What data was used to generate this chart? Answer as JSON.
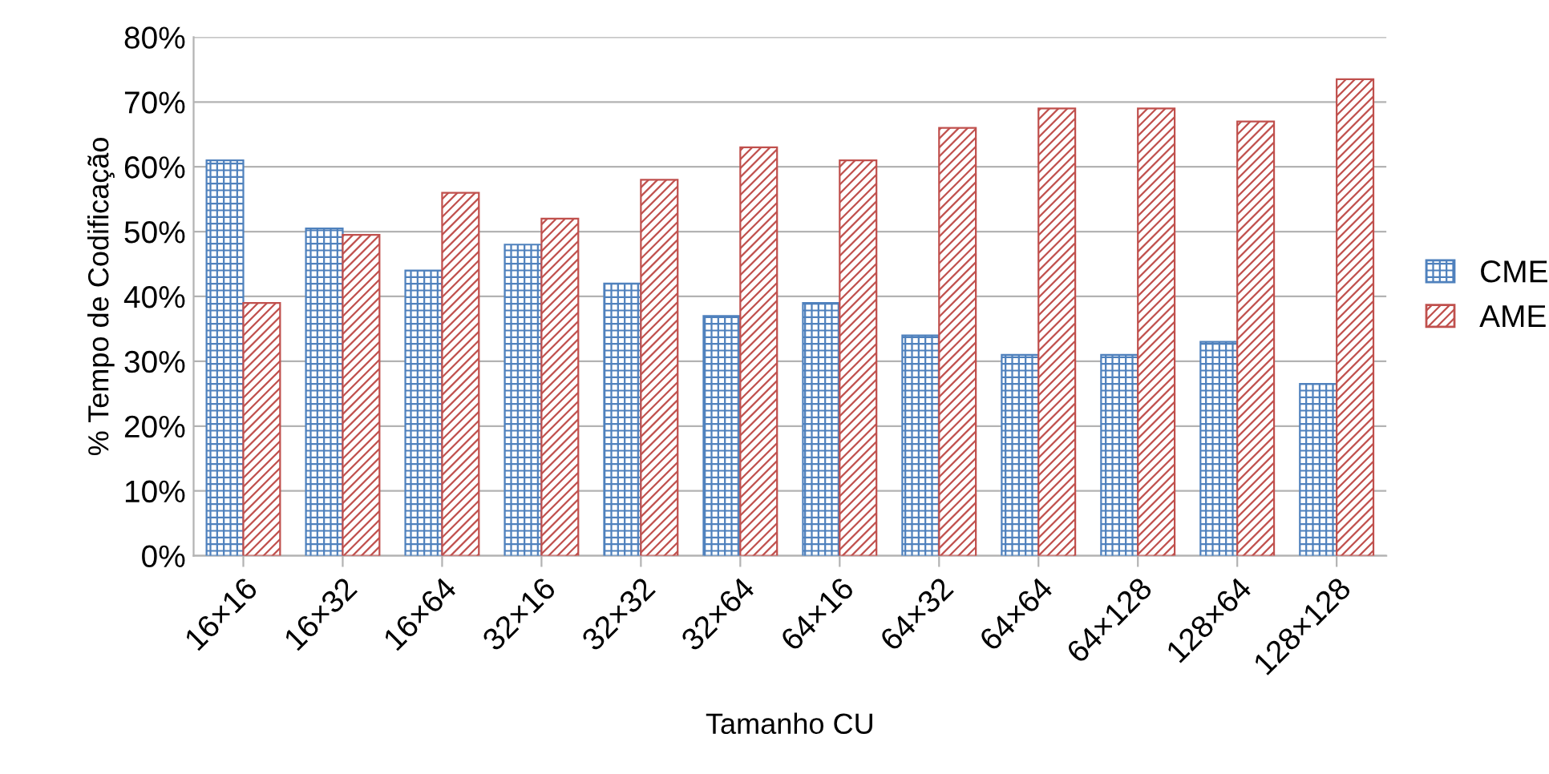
{
  "chart_data": {
    "type": "bar",
    "xlabel": "Tamanho CU",
    "ylabel": "% Tempo de Codificação",
    "categories": [
      "16×16",
      "16×32",
      "16×64",
      "32×16",
      "32×32",
      "32×64",
      "64×16",
      "64×32",
      "64×64",
      "64×128",
      "128×64",
      "128×128"
    ],
    "series": [
      {
        "name": "CME",
        "color": "#4f81bd",
        "values": [
          61,
          50.5,
          44,
          48,
          42,
          37,
          39,
          34,
          31,
          31,
          33,
          26.5
        ]
      },
      {
        "name": "AME",
        "color": "#c0504d",
        "values": [
          39,
          49.5,
          56,
          52,
          58,
          63,
          61,
          66,
          69,
          69,
          67,
          73.5
        ]
      }
    ],
    "ylim": [
      0,
      80
    ],
    "yticks": [
      {
        "value": 0,
        "label": "0%"
      },
      {
        "value": 10,
        "label": "10%"
      },
      {
        "value": 20,
        "label": "20%"
      },
      {
        "value": 30,
        "label": "30%"
      },
      {
        "value": 40,
        "label": "40%"
      },
      {
        "value": 50,
        "label": "50%"
      },
      {
        "value": 60,
        "label": "60%"
      },
      {
        "value": 70,
        "label": "70%"
      },
      {
        "value": 80,
        "label": "80%"
      }
    ],
    "grid": "y",
    "legend": "right"
  }
}
